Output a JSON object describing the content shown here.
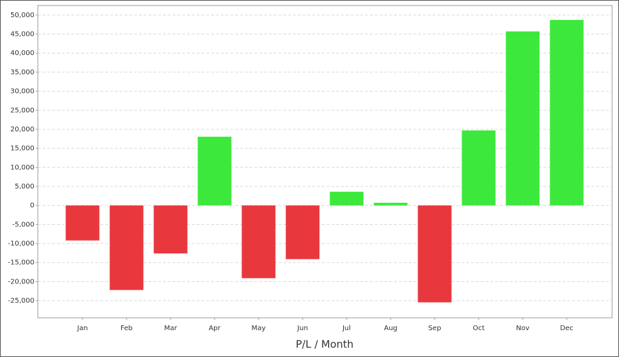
{
  "chart_data": {
    "type": "bar",
    "x_label": "P/L / Month",
    "categories": [
      "Jan",
      "Feb",
      "Mar",
      "Apr",
      "May",
      "Jun",
      "Jul",
      "Aug",
      "Sep",
      "Oct",
      "Nov",
      "Dec"
    ],
    "values": [
      -9200,
      -22200,
      -12600,
      18050,
      -19100,
      -14100,
      3600,
      700,
      -25450,
      19700,
      45700,
      48700
    ],
    "positive_color": "#3de83d",
    "negative_color": "#e8383d",
    "ylim": [
      -29500,
      52500
    ],
    "yticks": [
      {
        "value": -25000,
        "label": "-25,000"
      },
      {
        "value": -20000,
        "label": "-20,000"
      },
      {
        "value": -15000,
        "label": "-15,000"
      },
      {
        "value": -10000,
        "label": "-10,000"
      },
      {
        "value": -5000,
        "label": "-5,000"
      },
      0,
      {
        "value": 5000,
        "label": "5,000"
      },
      {
        "value": 10000,
        "label": "10,000"
      },
      {
        "value": 15000,
        "label": "15,000"
      },
      {
        "value": 20000,
        "label": "20,000"
      },
      {
        "value": 25000,
        "label": "25,000"
      },
      {
        "value": 30000,
        "label": "30,000"
      },
      {
        "value": 35000,
        "label": "35,000"
      },
      {
        "value": 40000,
        "label": "40,000"
      },
      {
        "value": 45000,
        "label": "45,000"
      },
      {
        "value": 50000,
        "label": "50,000"
      }
    ],
    "grid": true
  }
}
